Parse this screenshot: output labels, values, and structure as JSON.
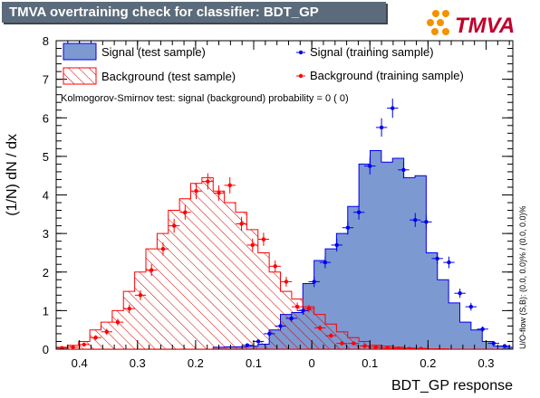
{
  "title": "TMVA overtraining check for classifier: BDT_GP",
  "logo_text": "TMVA",
  "colors": {
    "title_bg": "#5b6b7b",
    "signal_fill": "#7d99d1",
    "signal_line": "#0000ee",
    "background_line": "#ff0000",
    "background_hatch": "#cc0000",
    "logo_orange": "#f39200"
  },
  "legend": {
    "signal_test": "Signal (test sample)",
    "signal_train": "Signal (training sample)",
    "background_test": "Background (test sample)",
    "background_train": "Background (training sample)"
  },
  "ks_text": "Kolmogorov-Smirnov test: signal (background) probability =     0 (    0)",
  "side_text": "U/O-flow (S,B): (0.0, 0.0)% / (0.0, 0.0)%",
  "chart_data": {
    "type": "histogram",
    "xlabel": "BDT_GP response",
    "ylabel": "(1/N) dN / dx",
    "xlim": [
      -0.44,
      0.346
    ],
    "ylim": [
      0,
      8
    ],
    "xticks": [
      -0.4,
      -0.3,
      -0.2,
      -0.1,
      0,
      0.1,
      0.2,
      0.3
    ],
    "xtick_labels": [
      "0.4",
      "0.3",
      "0.2",
      "0.1",
      "0",
      "0.1",
      "0.2",
      "0.3"
    ],
    "yticks": [
      0,
      1,
      2,
      3,
      4,
      5,
      6,
      7,
      8
    ],
    "bin_edges": [
      -0.44,
      -0.4207,
      -0.4014,
      -0.3821,
      -0.3628,
      -0.3435,
      -0.3242,
      -0.3049,
      -0.2856,
      -0.2663,
      -0.247,
      -0.2277,
      -0.2084,
      -0.1891,
      -0.1698,
      -0.1505,
      -0.1312,
      -0.1119,
      -0.0926,
      -0.0733,
      -0.054,
      -0.0347,
      -0.0154,
      0.0039,
      0.0232,
      0.0425,
      0.0618,
      0.0811,
      0.1004,
      0.1197,
      0.139,
      0.1583,
      0.1776,
      0.1969,
      0.2162,
      0.2355,
      0.2548,
      0.2741,
      0.2934,
      0.3127,
      0.332,
      0.346
    ],
    "series": [
      {
        "name": "Signal (test sample)",
        "style": "filled",
        "values": [
          0,
          0,
          0,
          0,
          0,
          0,
          0,
          0,
          0,
          0,
          0,
          0,
          0,
          0,
          0.05,
          0.06,
          0.06,
          0.08,
          0.13,
          0.5,
          0.9,
          0.95,
          1.7,
          2.3,
          2.6,
          3.0,
          3.7,
          4.8,
          5.15,
          4.85,
          4.95,
          4.45,
          4.5,
          2.5,
          1.8,
          1.2,
          0.7,
          0.5,
          0.2,
          0.08,
          0.05
        ]
      },
      {
        "name": "Background (test sample)",
        "style": "hatched",
        "values": [
          0.05,
          0.1,
          0.2,
          0.5,
          0.7,
          1.0,
          1.5,
          2.0,
          2.6,
          3.0,
          3.6,
          3.9,
          4.3,
          4.45,
          4.1,
          3.8,
          3.55,
          3.1,
          2.5,
          2.0,
          1.5,
          1.3,
          1.1,
          0.9,
          0.65,
          0.45,
          0.3,
          0.2,
          0.1,
          0.08,
          0.05,
          0.03,
          0.02,
          0.01,
          0.01,
          0,
          0,
          0,
          0,
          0,
          0
        ]
      },
      {
        "name": "Signal (training sample)",
        "style": "points",
        "x": [
          -0.111,
          -0.092,
          -0.073,
          -0.054,
          -0.035,
          -0.015,
          0.004,
          0.023,
          0.043,
          0.062,
          0.081,
          0.1,
          0.12,
          0.139,
          0.158,
          0.178,
          0.197,
          0.216,
          0.236,
          0.255,
          0.274,
          0.294,
          0.313,
          0.332
        ],
        "values": [
          0.1,
          0.2,
          0.4,
          0.6,
          0.8,
          1.0,
          1.75,
          2.25,
          2.7,
          3.15,
          3.55,
          4.75,
          5.75,
          6.25,
          4.65,
          3.35,
          3.3,
          2.35,
          2.25,
          1.45,
          1.1,
          0.52,
          0.15,
          0.08
        ],
        "errors": [
          0.04,
          0.05,
          0.07,
          0.08,
          0.09,
          0.11,
          0.14,
          0.15,
          0.17,
          0.18,
          0.19,
          0.22,
          0.24,
          0.25,
          0.22,
          0.18,
          0.18,
          0.15,
          0.15,
          0.12,
          0.1,
          0.07,
          0.04,
          0.03
        ]
      },
      {
        "name": "Background (training sample)",
        "style": "points",
        "x": [
          -0.43,
          -0.411,
          -0.392,
          -0.372,
          -0.353,
          -0.334,
          -0.314,
          -0.295,
          -0.276,
          -0.256,
          -0.237,
          -0.218,
          -0.199,
          -0.179,
          -0.16,
          -0.141,
          -0.121,
          -0.102,
          -0.083,
          -0.063,
          -0.044,
          -0.025,
          -0.005,
          0.014,
          0.033,
          0.052,
          0.072,
          0.091,
          0.11,
          0.13,
          0.149,
          0.168,
          0.188
        ],
        "values": [
          0.03,
          0.05,
          0.12,
          0.3,
          0.45,
          0.7,
          1.05,
          1.4,
          2.05,
          2.6,
          3.2,
          3.55,
          4.1,
          4.35,
          4.05,
          4.25,
          3.25,
          2.7,
          2.85,
          2.15,
          1.75,
          1.1,
          1.05,
          0.55,
          0.35,
          0.15,
          0.15,
          0.08,
          0.05,
          0.03,
          0.02,
          0.01,
          0.01
        ],
        "errors": [
          0.02,
          0.03,
          0.04,
          0.06,
          0.08,
          0.09,
          0.11,
          0.13,
          0.15,
          0.17,
          0.18,
          0.19,
          0.21,
          0.21,
          0.2,
          0.21,
          0.18,
          0.17,
          0.17,
          0.15,
          0.13,
          0.11,
          0.1,
          0.07,
          0.06,
          0.04,
          0.04,
          0.03,
          0.02,
          0.02,
          0.01,
          0.01,
          0.01
        ]
      }
    ]
  }
}
